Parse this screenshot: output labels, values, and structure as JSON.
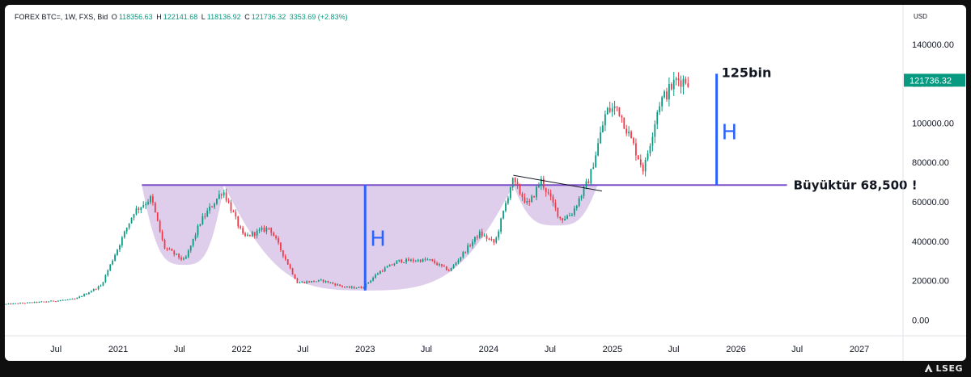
{
  "header": {
    "symbol": "FOREX BTC=, 1W, FXS, Bid",
    "open_label": "O",
    "open": "118356.63",
    "high_label": "H",
    "high": "122141.68",
    "low_label": "L",
    "low": "118136.92",
    "close_label": "C",
    "close": "121736.32",
    "change": "3353.69 (+2.83%)"
  },
  "currency": "USD",
  "brand": "LSEG",
  "colors": {
    "up": "#089981",
    "down": "#f23645",
    "resistance": "#7b4fc9",
    "cup_fill": "#d8c6e8",
    "measure": "#2962ff",
    "trendline": "#131722",
    "price_badge": "#089981"
  },
  "chart_data": {
    "type": "candlestick",
    "interval": "1W",
    "y_axis": {
      "ticks": [
        0,
        20000,
        40000,
        60000,
        80000,
        100000,
        120000,
        140000
      ],
      "tick_labels": [
        "0.00",
        "20000.00",
        "40000.00",
        "60000.00",
        "80000.00",
        "100000.00",
        "120000.00",
        "140000.00"
      ],
      "ylim": [
        -8000,
        160000
      ]
    },
    "x_axis": {
      "ticks": [
        {
          "date": "2020-07-01",
          "label": "Jul"
        },
        {
          "date": "2021-01-01",
          "label": "2021"
        },
        {
          "date": "2021-07-01",
          "label": "Jul"
        },
        {
          "date": "2022-01-01",
          "label": "2022"
        },
        {
          "date": "2022-07-01",
          "label": "Jul"
        },
        {
          "date": "2023-01-01",
          "label": "2023"
        },
        {
          "date": "2023-07-01",
          "label": "Jul"
        },
        {
          "date": "2024-01-01",
          "label": "2024"
        },
        {
          "date": "2024-07-01",
          "label": "Jul"
        },
        {
          "date": "2025-01-01",
          "label": "2025"
        },
        {
          "date": "2025-07-01",
          "label": "Jul"
        },
        {
          "date": "2026-01-01",
          "label": "2026"
        },
        {
          "date": "2026-07-01",
          "label": "Jul"
        },
        {
          "date": "2027-01-01",
          "label": "2027"
        }
      ],
      "xlim": [
        "2020-02-01",
        "2027-05-10"
      ]
    },
    "price_path": [
      [
        "2020-02-01",
        8000
      ],
      [
        "2020-06-01",
        9300
      ],
      [
        "2020-09-01",
        10700
      ],
      [
        "2020-11-15",
        17500
      ],
      [
        "2021-01-07",
        38000
      ],
      [
        "2021-02-20",
        55000
      ],
      [
        "2021-04-12",
        62000
      ],
      [
        "2021-05-20",
        37000
      ],
      [
        "2021-07-20",
        30000
      ],
      [
        "2021-09-05",
        50000
      ],
      [
        "2021-11-10",
        66000
      ],
      [
        "2022-01-10",
        42000
      ],
      [
        "2022-03-28",
        47000
      ],
      [
        "2022-06-18",
        19000
      ],
      [
        "2022-09-01",
        20000
      ],
      [
        "2022-11-10",
        16500
      ],
      [
        "2022-12-28",
        16500
      ],
      [
        "2023-02-15",
        24500
      ],
      [
        "2023-04-14",
        30000
      ],
      [
        "2023-07-13",
        30500
      ],
      [
        "2023-09-11",
        25000
      ],
      [
        "2023-10-24",
        34500
      ],
      [
        "2023-12-08",
        44000
      ],
      [
        "2024-01-23",
        39000
      ],
      [
        "2024-03-14",
        71000
      ],
      [
        "2024-05-01",
        58000
      ],
      [
        "2024-06-07",
        71000
      ],
      [
        "2024-08-05",
        51000
      ],
      [
        "2024-09-06",
        54000
      ],
      [
        "2024-10-29",
        72000
      ],
      [
        "2024-12-17",
        106000
      ],
      [
        "2025-01-20",
        108000
      ],
      [
        "2025-04-07",
        76000
      ],
      [
        "2025-05-22",
        110000
      ],
      [
        "2025-07-14",
        122000
      ],
      [
        "2025-08-13",
        121736
      ]
    ],
    "last_price": 121736.32,
    "last_price_label": "121736.32",
    "annotations": {
      "resistance": {
        "value": 68500,
        "from": "2021-03-12",
        "to": "2026-06-01",
        "label": "Büyüktür 68,500 !"
      },
      "cup_pattern": [
        {
          "from": "2021-03-12",
          "to": "2021-11-10",
          "bottom_date": "2021-07-15",
          "bottom": 28000
        },
        {
          "from": "2021-11-10",
          "to": "2024-03-14",
          "bottom_date": "2023-01-01",
          "bottom": 15000
        },
        {
          "from": "2024-03-14",
          "to": "2024-11-18",
          "bottom_date": "2024-07-20",
          "bottom": 48000
        }
      ],
      "depth_measure": {
        "date": "2023-01-01",
        "from": 15000,
        "to": 68500,
        "label": "H"
      },
      "target_measure": {
        "date": "2025-11-05",
        "from": 68500,
        "to": 125000,
        "label": "H"
      },
      "target_label": "125bin",
      "trendline": {
        "from": [
          "2024-03-14",
          73500
        ],
        "to": [
          "2024-12-01",
          65500
        ]
      }
    }
  }
}
